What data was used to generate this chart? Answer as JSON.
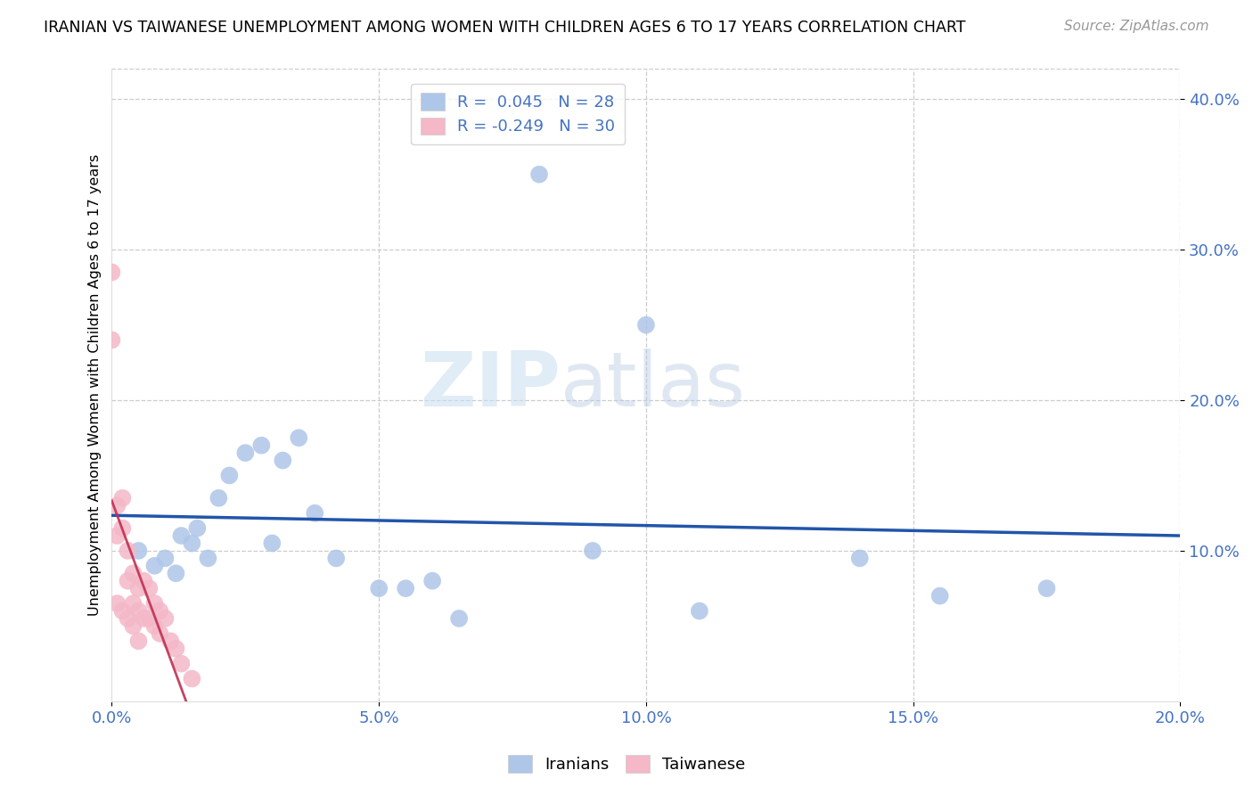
{
  "title": "IRANIAN VS TAIWANESE UNEMPLOYMENT AMONG WOMEN WITH CHILDREN AGES 6 TO 17 YEARS CORRELATION CHART",
  "source": "Source: ZipAtlas.com",
  "ylabel": "Unemployment Among Women with Children Ages 6 to 17 years",
  "xlim": [
    0.0,
    0.2
  ],
  "ylim": [
    0.0,
    0.42
  ],
  "x_ticks": [
    0.0,
    0.05,
    0.1,
    0.15,
    0.2
  ],
  "y_ticks": [
    0.1,
    0.2,
    0.3,
    0.4
  ],
  "x_tick_labels": [
    "0.0%",
    "5.0%",
    "10.0%",
    "15.0%",
    "20.0%"
  ],
  "y_tick_labels": [
    "10.0%",
    "20.0%",
    "30.0%",
    "40.0%"
  ],
  "legend_R_iranian": "0.045",
  "legend_N_iranian": "28",
  "legend_R_taiwanese": "-0.249",
  "legend_N_taiwanese": "30",
  "iranian_color": "#aec6e8",
  "taiwanese_color": "#f4b8c8",
  "iranian_line_color": "#2255aa",
  "taiwanese_line_color": "#c03050",
  "watermark_zip": "ZIP",
  "watermark_atlas": "atlas",
  "iranian_x": [
    0.005,
    0.008,
    0.01,
    0.012,
    0.013,
    0.015,
    0.016,
    0.018,
    0.02,
    0.022,
    0.025,
    0.028,
    0.03,
    0.032,
    0.035,
    0.038,
    0.042,
    0.05,
    0.055,
    0.06,
    0.065,
    0.08,
    0.09,
    0.1,
    0.11,
    0.14,
    0.155,
    0.175
  ],
  "iranian_y": [
    0.1,
    0.09,
    0.095,
    0.085,
    0.11,
    0.105,
    0.115,
    0.095,
    0.135,
    0.15,
    0.165,
    0.17,
    0.105,
    0.16,
    0.175,
    0.125,
    0.095,
    0.075,
    0.075,
    0.08,
    0.055,
    0.35,
    0.1,
    0.25,
    0.06,
    0.095,
    0.07,
    0.075
  ],
  "taiwanese_x": [
    0.0,
    0.0,
    0.001,
    0.001,
    0.001,
    0.002,
    0.002,
    0.002,
    0.003,
    0.003,
    0.003,
    0.004,
    0.004,
    0.004,
    0.005,
    0.005,
    0.005,
    0.006,
    0.006,
    0.007,
    0.007,
    0.008,
    0.008,
    0.009,
    0.009,
    0.01,
    0.011,
    0.012,
    0.013,
    0.015
  ],
  "taiwanese_y": [
    0.285,
    0.24,
    0.13,
    0.11,
    0.065,
    0.135,
    0.115,
    0.06,
    0.1,
    0.08,
    0.055,
    0.085,
    0.065,
    0.05,
    0.075,
    0.06,
    0.04,
    0.08,
    0.055,
    0.075,
    0.055,
    0.065,
    0.05,
    0.06,
    0.045,
    0.055,
    0.04,
    0.035,
    0.025,
    0.015
  ]
}
